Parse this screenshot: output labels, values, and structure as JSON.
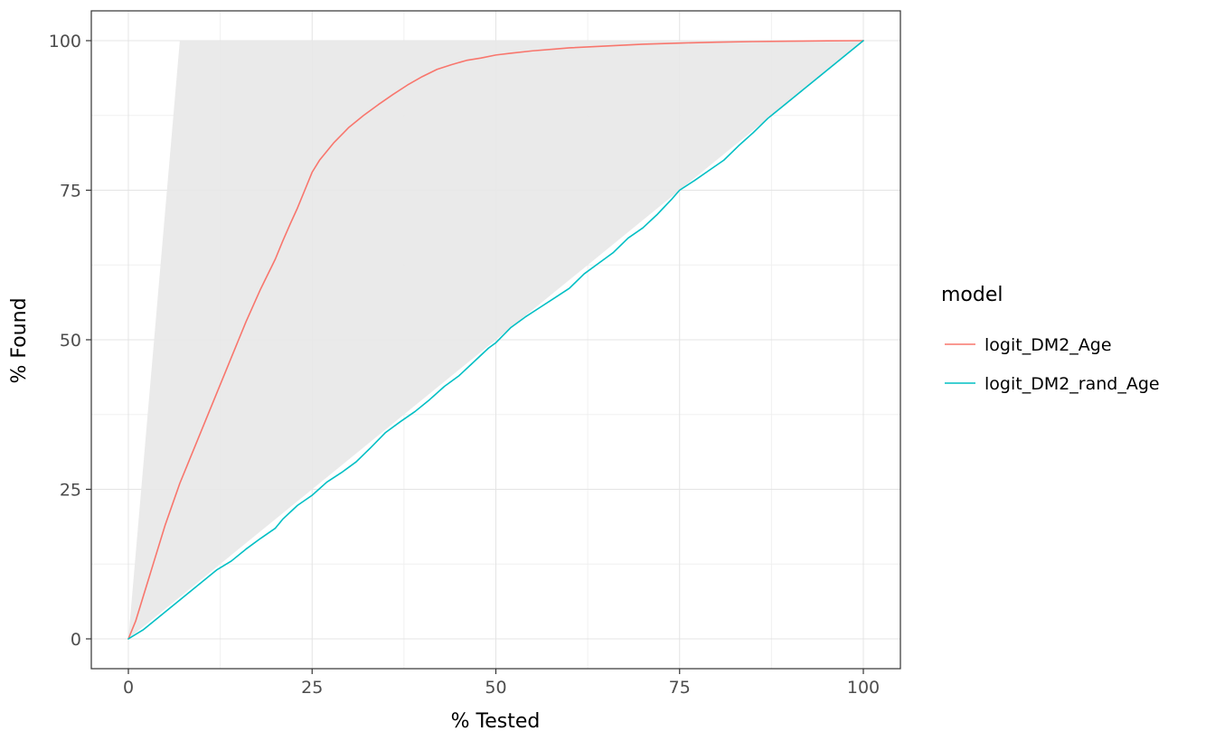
{
  "chart_data": {
    "type": "line",
    "title": "",
    "xlabel": "% Tested",
    "ylabel": "% Found",
    "xlim": [
      0,
      100
    ],
    "ylim": [
      0,
      100
    ],
    "x_ticks": [
      0,
      25,
      50,
      75,
      100
    ],
    "y_ticks": [
      0,
      25,
      50,
      75,
      100
    ],
    "grid": true,
    "panel": {
      "background": "#ffffff",
      "border_color": "#333333",
      "grid_major_color": "#e4e4e4",
      "grid_minor_color": "#f0f0f0",
      "minor_ticks": [
        12.5,
        37.5,
        62.5,
        87.5
      ]
    },
    "legend": {
      "title": "model",
      "position": "right"
    },
    "envelope": {
      "name": "optimal-gains-envelope",
      "fill": "#e8e8e8",
      "points": [
        [
          0,
          0
        ],
        [
          7,
          100
        ],
        [
          100,
          100
        ]
      ]
    },
    "series": [
      {
        "name": "logit_DM2_Age",
        "color": "#F8766D",
        "points": [
          [
            0,
            0
          ],
          [
            1,
            3
          ],
          [
            2,
            7
          ],
          [
            3,
            11
          ],
          [
            4,
            15
          ],
          [
            5,
            19
          ],
          [
            6,
            22.5
          ],
          [
            7,
            26
          ],
          [
            8,
            29
          ],
          [
            9,
            32
          ],
          [
            10,
            35
          ],
          [
            12,
            41
          ],
          [
            14,
            47
          ],
          [
            15,
            50
          ],
          [
            16,
            53
          ],
          [
            18,
            58.5
          ],
          [
            20,
            63.5
          ],
          [
            21,
            66.5
          ],
          [
            22,
            69.3
          ],
          [
            23,
            72
          ],
          [
            24,
            75
          ],
          [
            25,
            78
          ],
          [
            26,
            80
          ],
          [
            28,
            83
          ],
          [
            30,
            85.5
          ],
          [
            32,
            87.5
          ],
          [
            34,
            89.3
          ],
          [
            36,
            91
          ],
          [
            38,
            92.6
          ],
          [
            40,
            94
          ],
          [
            42,
            95.2
          ],
          [
            44,
            96
          ],
          [
            46,
            96.7
          ],
          [
            48,
            97.1
          ],
          [
            50,
            97.6
          ],
          [
            52,
            97.9
          ],
          [
            55,
            98.3
          ],
          [
            58,
            98.6
          ],
          [
            60,
            98.8
          ],
          [
            65,
            99.1
          ],
          [
            70,
            99.4
          ],
          [
            75,
            99.6
          ],
          [
            80,
            99.75
          ],
          [
            85,
            99.85
          ],
          [
            90,
            99.92
          ],
          [
            95,
            99.97
          ],
          [
            100,
            100
          ]
        ]
      },
      {
        "name": "logit_DM2_rand_Age",
        "color": "#00BFC4",
        "points": [
          [
            0,
            0
          ],
          [
            2,
            1.5
          ],
          [
            4,
            3.5
          ],
          [
            5,
            4.5
          ],
          [
            7,
            6.5
          ],
          [
            8,
            7.5
          ],
          [
            10,
            9.5
          ],
          [
            12,
            11.5
          ],
          [
            14,
            13
          ],
          [
            16,
            15
          ],
          [
            18,
            16.8
          ],
          [
            20,
            18.5
          ],
          [
            21,
            20
          ],
          [
            23,
            22.3
          ],
          [
            25,
            24
          ],
          [
            27,
            26.2
          ],
          [
            29,
            27.8
          ],
          [
            31,
            29.6
          ],
          [
            33,
            32
          ],
          [
            35,
            34.5
          ],
          [
            37,
            36.3
          ],
          [
            39,
            38
          ],
          [
            41,
            40
          ],
          [
            43,
            42.2
          ],
          [
            45,
            44
          ],
          [
            47,
            46.3
          ],
          [
            49,
            48.6
          ],
          [
            50,
            49.5
          ],
          [
            52,
            52
          ],
          [
            54,
            53.8
          ],
          [
            56,
            55.4
          ],
          [
            58,
            57
          ],
          [
            60,
            58.6
          ],
          [
            62,
            61
          ],
          [
            64,
            62.8
          ],
          [
            66,
            64.6
          ],
          [
            68,
            67
          ],
          [
            70,
            68.7
          ],
          [
            72,
            71
          ],
          [
            74,
            73.6
          ],
          [
            75,
            75
          ],
          [
            77,
            76.6
          ],
          [
            79,
            78.3
          ],
          [
            81,
            80
          ],
          [
            83,
            82.4
          ],
          [
            85,
            84.6
          ],
          [
            87,
            87
          ],
          [
            89,
            89
          ],
          [
            91,
            91
          ],
          [
            93,
            93
          ],
          [
            95,
            95
          ],
          [
            97,
            97
          ],
          [
            99,
            99
          ],
          [
            100,
            100
          ]
        ]
      }
    ]
  }
}
